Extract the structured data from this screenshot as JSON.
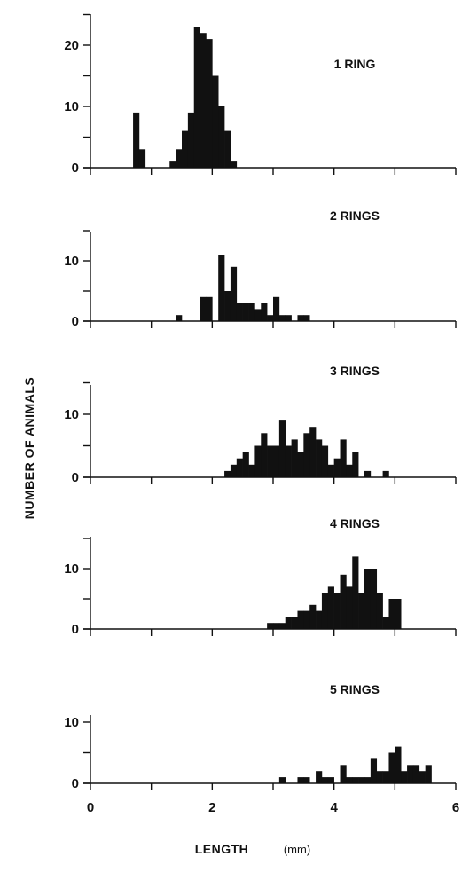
{
  "chart_data": {
    "type": "bar",
    "ylabel": "NUMBER OF ANIMALS",
    "xlabel": "LENGTH",
    "xunit": "(mm)",
    "xlim": [
      0,
      6
    ],
    "x_ticks": [
      0,
      2,
      4,
      6
    ],
    "x_tick_labels": [
      "0",
      "2",
      "4",
      "6"
    ],
    "bin_width": 0.1,
    "panels": [
      {
        "title": "1 RING",
        "ylim": [
          0,
          25
        ],
        "y_ticks": [
          0,
          10,
          20
        ],
        "y_tick_labels": [
          "0",
          "10",
          "20"
        ],
        "bars": [
          {
            "x": 0.7,
            "y": 9
          },
          {
            "x": 0.8,
            "y": 3
          },
          {
            "x": 1.3,
            "y": 1
          },
          {
            "x": 1.4,
            "y": 3
          },
          {
            "x": 1.5,
            "y": 6
          },
          {
            "x": 1.6,
            "y": 9
          },
          {
            "x": 1.7,
            "y": 23
          },
          {
            "x": 1.8,
            "y": 22
          },
          {
            "x": 1.9,
            "y": 21
          },
          {
            "x": 2.0,
            "y": 15
          },
          {
            "x": 2.1,
            "y": 10
          },
          {
            "x": 2.2,
            "y": 6
          },
          {
            "x": 2.3,
            "y": 1
          }
        ]
      },
      {
        "title": "2 RINGS",
        "ylim": [
          0,
          15
        ],
        "y_ticks": [
          0,
          10
        ],
        "y_tick_labels": [
          "0",
          "10"
        ],
        "bars": [
          {
            "x": 1.4,
            "y": 1
          },
          {
            "x": 1.8,
            "y": 4
          },
          {
            "x": 1.9,
            "y": 4
          },
          {
            "x": 2.1,
            "y": 11
          },
          {
            "x": 2.2,
            "y": 5
          },
          {
            "x": 2.3,
            "y": 9
          },
          {
            "x": 2.4,
            "y": 3
          },
          {
            "x": 2.5,
            "y": 3
          },
          {
            "x": 2.6,
            "y": 3
          },
          {
            "x": 2.7,
            "y": 2
          },
          {
            "x": 2.8,
            "y": 3
          },
          {
            "x": 2.9,
            "y": 1
          },
          {
            "x": 3.0,
            "y": 4
          },
          {
            "x": 3.1,
            "y": 1
          },
          {
            "x": 3.2,
            "y": 1
          },
          {
            "x": 3.4,
            "y": 1
          },
          {
            "x": 3.5,
            "y": 1
          }
        ]
      },
      {
        "title": "3 RINGS",
        "ylim": [
          0,
          15
        ],
        "y_ticks": [
          0,
          10
        ],
        "y_tick_labels": [
          "0",
          "10"
        ],
        "bars": [
          {
            "x": 2.2,
            "y": 1
          },
          {
            "x": 2.3,
            "y": 2
          },
          {
            "x": 2.4,
            "y": 3
          },
          {
            "x": 2.5,
            "y": 4
          },
          {
            "x": 2.6,
            "y": 2
          },
          {
            "x": 2.7,
            "y": 5
          },
          {
            "x": 2.8,
            "y": 7
          },
          {
            "x": 2.9,
            "y": 5
          },
          {
            "x": 3.0,
            "y": 5
          },
          {
            "x": 3.1,
            "y": 9
          },
          {
            "x": 3.2,
            "y": 5
          },
          {
            "x": 3.3,
            "y": 6
          },
          {
            "x": 3.4,
            "y": 4
          },
          {
            "x": 3.5,
            "y": 7
          },
          {
            "x": 3.6,
            "y": 8
          },
          {
            "x": 3.7,
            "y": 6
          },
          {
            "x": 3.8,
            "y": 5
          },
          {
            "x": 3.9,
            "y": 2
          },
          {
            "x": 4.0,
            "y": 3
          },
          {
            "x": 4.1,
            "y": 6
          },
          {
            "x": 4.2,
            "y": 2
          },
          {
            "x": 4.3,
            "y": 4
          },
          {
            "x": 4.5,
            "y": 1
          },
          {
            "x": 4.8,
            "y": 1
          }
        ]
      },
      {
        "title": "4 RINGS",
        "ylim": [
          0,
          15
        ],
        "y_ticks": [
          0,
          10
        ],
        "y_tick_labels": [
          "0",
          "10"
        ],
        "bars": [
          {
            "x": 2.9,
            "y": 1
          },
          {
            "x": 3.0,
            "y": 1
          },
          {
            "x": 3.1,
            "y": 1
          },
          {
            "x": 3.2,
            "y": 2
          },
          {
            "x": 3.3,
            "y": 2
          },
          {
            "x": 3.4,
            "y": 3
          },
          {
            "x": 3.5,
            "y": 3
          },
          {
            "x": 3.6,
            "y": 4
          },
          {
            "x": 3.7,
            "y": 3
          },
          {
            "x": 3.8,
            "y": 6
          },
          {
            "x": 3.9,
            "y": 7
          },
          {
            "x": 4.0,
            "y": 6
          },
          {
            "x": 4.1,
            "y": 9
          },
          {
            "x": 4.2,
            "y": 7
          },
          {
            "x": 4.3,
            "y": 12
          },
          {
            "x": 4.4,
            "y": 6
          },
          {
            "x": 4.5,
            "y": 10
          },
          {
            "x": 4.6,
            "y": 10
          },
          {
            "x": 4.7,
            "y": 6
          },
          {
            "x": 4.8,
            "y": 2
          },
          {
            "x": 4.9,
            "y": 5
          },
          {
            "x": 5.0,
            "y": 5
          }
        ]
      },
      {
        "title": "5 RINGS",
        "ylim": [
          0,
          12
        ],
        "y_ticks": [
          0,
          10
        ],
        "y_tick_labels": [
          "0",
          "10"
        ],
        "bars": [
          {
            "x": 3.1,
            "y": 1
          },
          {
            "x": 3.4,
            "y": 1
          },
          {
            "x": 3.5,
            "y": 1
          },
          {
            "x": 3.7,
            "y": 2
          },
          {
            "x": 3.8,
            "y": 1
          },
          {
            "x": 3.9,
            "y": 1
          },
          {
            "x": 4.1,
            "y": 3
          },
          {
            "x": 4.2,
            "y": 1
          },
          {
            "x": 4.3,
            "y": 1
          },
          {
            "x": 4.4,
            "y": 1
          },
          {
            "x": 4.5,
            "y": 1
          },
          {
            "x": 4.6,
            "y": 4
          },
          {
            "x": 4.7,
            "y": 2
          },
          {
            "x": 4.8,
            "y": 2
          },
          {
            "x": 4.9,
            "y": 5
          },
          {
            "x": 5.0,
            "y": 6
          },
          {
            "x": 5.1,
            "y": 2
          },
          {
            "x": 5.2,
            "y": 3
          },
          {
            "x": 5.3,
            "y": 3
          },
          {
            "x": 5.4,
            "y": 2
          },
          {
            "x": 5.5,
            "y": 3
          }
        ]
      }
    ]
  }
}
